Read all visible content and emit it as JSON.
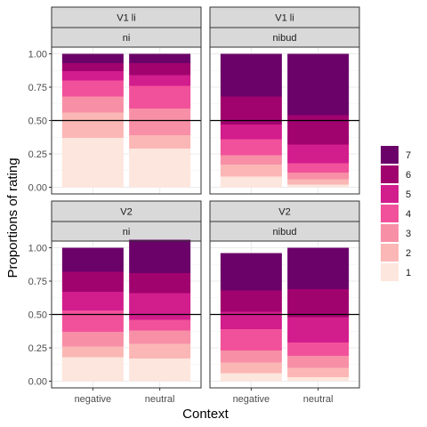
{
  "chart_data": {
    "type": "bar",
    "stacked": true,
    "xlabel": "Context",
    "ylabel": "Proportions of rating",
    "ylim": [
      0,
      1
    ],
    "yticks": [
      "0.00",
      "0.25",
      "0.50",
      "0.75",
      "1.00"
    ],
    "ytick_values": [
      0,
      0.25,
      0.5,
      0.75,
      1.0
    ],
    "reference_line": 0.5,
    "categories": [
      "negative",
      "neutral"
    ],
    "legend": {
      "placement": "right",
      "entries": [
        "7",
        "6",
        "5",
        "4",
        "3",
        "2",
        "1"
      ],
      "colors": {
        "1": "#fde6dd",
        "2": "#fbb7b5",
        "3": "#f78fa7",
        "4": "#f1519a",
        "5": "#d21d8d",
        "6": "#a1036e",
        "7": "#6b0269"
      }
    },
    "rating_levels": [
      "1",
      "2",
      "3",
      "4",
      "5",
      "6",
      "7"
    ],
    "panels": [
      {
        "strip_top": "V1 li",
        "strip_bottom": "ni",
        "bars": [
          {
            "category": "negative",
            "values": [
              0.37,
              0.19,
              0.12,
              0.12,
              0.07,
              0.06,
              0.07
            ]
          },
          {
            "category": "neutral",
            "values": [
              0.29,
              0.1,
              0.2,
              0.17,
              0.08,
              0.09,
              0.07
            ]
          }
        ]
      },
      {
        "strip_top": "V1 li",
        "strip_bottom": "nibud",
        "bars": [
          {
            "category": "negative",
            "values": [
              0.08,
              0.09,
              0.07,
              0.12,
              0.11,
              0.21,
              0.32
            ]
          },
          {
            "category": "neutral",
            "values": [
              0.02,
              0.04,
              0.05,
              0.07,
              0.14,
              0.22,
              0.46
            ]
          }
        ]
      },
      {
        "strip_top": "V2",
        "strip_bottom": "ni",
        "bars": [
          {
            "category": "negative",
            "values": [
              0.18,
              0.08,
              0.11,
              0.16,
              0.14,
              0.15,
              0.18
            ]
          },
          {
            "category": "neutral",
            "values": [
              0.17,
              0.11,
              0.1,
              0.08,
              0.2,
              0.15,
              0.25
            ]
          }
        ]
      },
      {
        "strip_top": "V2",
        "strip_bottom": "nibud",
        "bars": [
          {
            "category": "negative",
            "values": [
              0.06,
              0.08,
              0.09,
              0.16,
              0.13,
              0.16,
              0.28
            ]
          },
          {
            "category": "neutral",
            "values": [
              0.03,
              0.07,
              0.09,
              0.1,
              0.19,
              0.21,
              0.31
            ]
          }
        ]
      }
    ]
  }
}
